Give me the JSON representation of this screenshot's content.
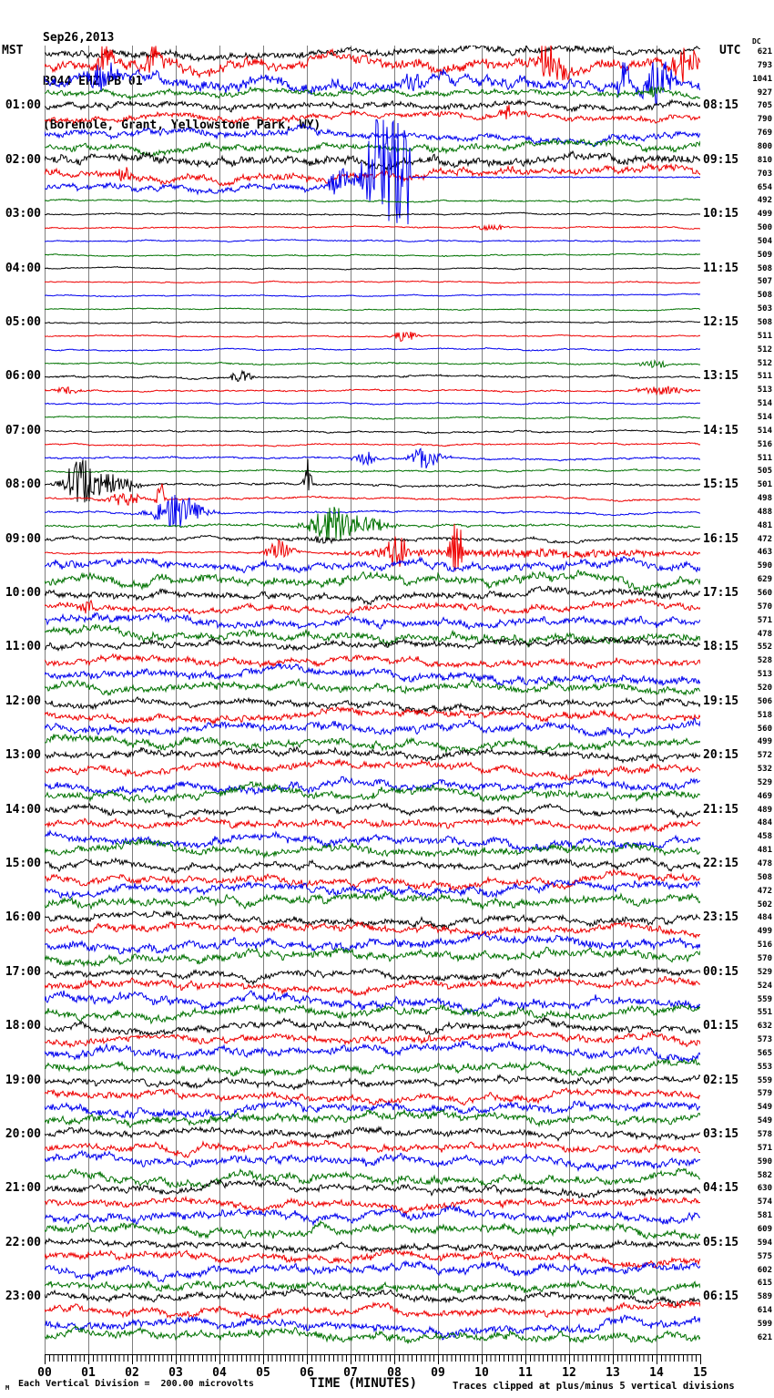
{
  "header": {
    "date": "Sep26,2013",
    "station": "B944 EHZ PB 01",
    "location": "(Borehole, Grant, Yellowstone Park, WY)"
  },
  "footer": {
    "scale_note": "Each Vertical Division =  200.00 microvolts",
    "x_title": "TIME (MINUTES)",
    "clip_note": "Traces clipped at plus/minus 5 vertical divisions",
    "mu_mark": "M"
  },
  "chart_data": {
    "type": "line",
    "subtype": "helicorder-seismogram",
    "x_axis": {
      "title": "TIME (MINUTES)",
      "range_minutes": [
        0,
        15
      ],
      "tick_labels": [
        "00",
        "01",
        "02",
        "03",
        "04",
        "05",
        "06",
        "07",
        "08",
        "09",
        "10",
        "11",
        "12",
        "13",
        "14",
        "15"
      ]
    },
    "left_axis": {
      "label": "MST",
      "hour_labels": [
        "01:00",
        "02:00",
        "03:00",
        "04:00",
        "05:00",
        "06:00",
        "07:00",
        "08:00",
        "09:00",
        "10:00",
        "11:00",
        "12:00",
        "13:00",
        "14:00",
        "15:00",
        "16:00",
        "17:00",
        "18:00",
        "19:00",
        "20:00",
        "21:00",
        "22:00",
        "23:00"
      ]
    },
    "right_axis": {
      "label": "UTC",
      "dc_header": "DC",
      "hour_labels": [
        "08:15",
        "09:15",
        "10:15",
        "11:15",
        "12:15",
        "13:15",
        "14:15",
        "15:15",
        "16:15",
        "17:15",
        "18:15",
        "19:15",
        "20:15",
        "21:15",
        "22:15",
        "23:15",
        "00:15",
        "01:15",
        "02:15",
        "03:15",
        "04:15",
        "05:15",
        "06:15"
      ],
      "dc_values": [
        621,
        793,
        1041,
        927,
        705,
        790,
        769,
        800,
        810,
        703,
        654,
        492,
        499,
        500,
        504,
        509,
        508,
        507,
        508,
        503,
        508,
        511,
        512,
        512,
        511,
        513,
        514,
        514,
        514,
        516,
        511,
        505,
        501,
        498,
        488,
        481,
        472,
        463,
        590,
        629,
        560,
        570,
        571,
        478,
        552,
        528,
        513,
        520,
        506,
        518,
        560,
        499,
        572,
        532,
        529,
        469,
        489,
        484,
        458,
        481,
        478,
        508,
        472,
        502,
        484,
        499,
        516,
        570,
        529,
        524,
        559,
        551,
        632,
        573,
        565,
        553,
        559,
        579,
        549,
        549,
        578,
        571,
        590,
        582,
        630,
        574,
        581,
        609,
        594,
        575,
        602,
        615,
        589,
        614,
        599,
        621
      ]
    },
    "trace_colors": [
      "#000000",
      "#ee0000",
      "#0000ee",
      "#007200"
    ],
    "grid_color": "#7f7f7f",
    "clip_divisions": 5,
    "microvolts_per_division": 200.0,
    "rows": [
      {
        "a": 4.5
      },
      {
        "a": 7,
        "e": [
          [
            66,
            10,
            16,
            -0.8
          ],
          [
            121,
            10,
            18,
            -0.8
          ],
          [
            560,
            18,
            26,
            -0.8
          ],
          [
            706,
            18,
            16,
            -0.4
          ]
        ]
      },
      {
        "a": 7,
        "e": [
          [
            63,
            14,
            18,
            -0.8
          ],
          [
            404,
            10,
            13,
            -0.6
          ],
          [
            636,
            8,
            20,
            -0.9
          ],
          [
            674,
            14,
            24,
            -0.8
          ]
        ]
      },
      {
        "a": 3.4,
        "e": [
          [
            672,
            10,
            7,
            -0.7
          ]
        ]
      },
      {
        "a": 3.8
      },
      {
        "a": 3.6,
        "e": [
          [
            508,
            10,
            8,
            -0.5
          ]
        ]
      },
      {
        "a": 4.2
      },
      {
        "a": 4.2
      },
      {
        "a": 5.5
      },
      {
        "a": 4.5,
        "e": [
          [
            88,
            8,
            8,
            -0.3
          ]
        ]
      },
      {
        "a": 4,
        "e": [
          [
            323,
            9,
            26,
            -0.8
          ],
          [
            376,
            24,
            72,
            -0.7
          ],
          [
            398,
            5,
            60,
            -0.5
          ]
        ],
        "p": [
          402,
          -11,
          1.2
        ]
      },
      {
        "a": 1
      },
      {
        "a": 0.9
      },
      {
        "a": 0.8,
        "e": [
          [
            492,
            18,
            3.5,
            0
          ]
        ]
      },
      {
        "a": 0.8
      },
      {
        "a": 0.8
      },
      {
        "a": 0.7
      },
      {
        "a": 0.7
      },
      {
        "a": 0.7
      },
      {
        "a": 0.7
      },
      {
        "a": 0.8
      },
      {
        "a": 0.8,
        "e": [
          [
            396,
            12,
            7,
            0
          ]
        ]
      },
      {
        "a": 0.8
      },
      {
        "a": 0.9,
        "e": [
          [
            671,
            16,
            4.5,
            0
          ]
        ]
      },
      {
        "a": 1.2,
        "e": [
          [
            216,
            10,
            10,
            -0.3
          ]
        ]
      },
      {
        "a": 1,
        "e": [
          [
            26,
            14,
            4,
            0
          ],
          [
            678,
            26,
            5,
            0
          ]
        ]
      },
      {
        "a": 0.9
      },
      {
        "a": 0.9
      },
      {
        "a": 1
      },
      {
        "a": 0.9
      },
      {
        "a": 1.2,
        "e": [
          [
            352,
            12,
            8,
            0
          ],
          [
            419,
            16,
            14,
            -0.3
          ]
        ]
      },
      {
        "a": 1
      },
      {
        "a": 1.4,
        "e": [
          [
            40,
            18,
            26,
            -0.2
          ],
          [
            75,
            25,
            12,
            0
          ],
          [
            289,
            4,
            28,
            -0.7
          ]
        ]
      },
      {
        "a": 1.2,
        "e": [
          [
            88,
            20,
            8,
            -0.2
          ],
          [
            126,
            4,
            22,
            -0.8
          ]
        ]
      },
      {
        "a": 1.2,
        "e": [
          [
            146,
            26,
            19,
            -0.2
          ]
        ]
      },
      {
        "a": 1.5,
        "e": [
          [
            316,
            26,
            21,
            -0.2
          ],
          [
            360,
            20,
            8,
            0
          ]
        ]
      },
      {
        "a": 2.2,
        "e": [
          [
            306,
            14,
            4,
            0
          ]
        ]
      },
      {
        "a": 1,
        "e": [
          [
            258,
            14,
            12,
            -0.3
          ],
          [
            380,
            50,
            5,
            0
          ],
          [
            388,
            8,
            30,
            -0.6
          ],
          [
            451,
            7,
            40,
            -0.6
          ],
          [
            560,
            160,
            4.5,
            0
          ]
        ]
      },
      {
        "a": 5
      },
      {
        "a": 5.5
      },
      {
        "a": 4.2
      },
      {
        "a": 4.2,
        "e": [
          [
            46,
            6,
            12,
            -0.7
          ]
        ]
      },
      {
        "a": 5
      },
      {
        "a": 5
      },
      {
        "a": 4
      },
      {
        "a": 4.2
      },
      {
        "a": 5
      },
      {
        "a": 5
      },
      {
        "a": 4
      },
      {
        "a": 4.5
      },
      {
        "a": 5
      },
      {
        "a": 5
      },
      {
        "a": 4
      },
      {
        "a": 4.5
      },
      {
        "a": 5
      },
      {
        "a": 5.2
      },
      {
        "a": 4
      },
      {
        "a": 4.5
      },
      {
        "a": 5
      },
      {
        "a": 5
      },
      {
        "a": 4.2
      },
      {
        "a": 4.5
      },
      {
        "a": 5
      },
      {
        "a": 5.2
      },
      {
        "a": 4.2
      },
      {
        "a": 4.5
      },
      {
        "a": 5.5
      },
      {
        "a": 5.2
      },
      {
        "a": 4.2
      },
      {
        "a": 4.5
      },
      {
        "a": 5.5
      },
      {
        "a": 5
      },
      {
        "a": 4.2
      },
      {
        "a": 4.5
      },
      {
        "a": 5.2
      },
      {
        "a": 5
      },
      {
        "a": 4
      },
      {
        "a": 4.5
      },
      {
        "a": 5.2
      },
      {
        "a": 5
      },
      {
        "a": 4.2
      },
      {
        "a": 4.5
      },
      {
        "a": 5.2
      },
      {
        "a": 5
      },
      {
        "a": 4.2
      },
      {
        "a": 4.5
      },
      {
        "a": 5.2
      },
      {
        "a": 5
      },
      {
        "a": 4.2
      },
      {
        "a": 4.5
      },
      {
        "a": 5.2
      },
      {
        "a": 5
      },
      {
        "a": 4.2
      },
      {
        "a": 4.5
      },
      {
        "a": 5.2
      },
      {
        "a": 5
      }
    ]
  }
}
